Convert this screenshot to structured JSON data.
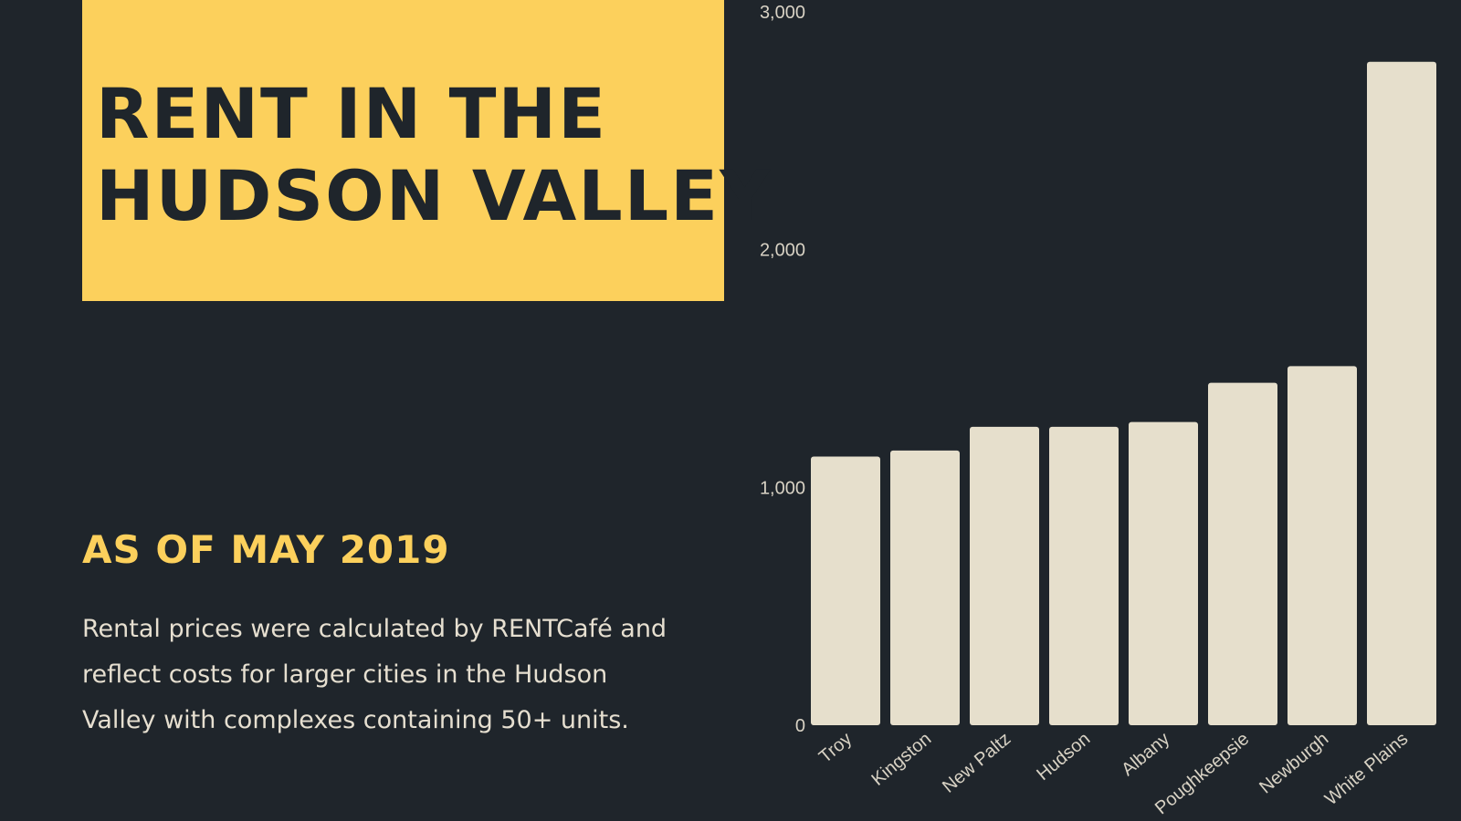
{
  "header": {
    "title_line1": "RENT IN THE",
    "title_line2": "HUDSON VALLEY"
  },
  "subtitle": "AS OF MAY 2019",
  "description": "Rental prices were calculated by RENTCafé and reflect costs for larger cities in the Hudson Valley with complexes containing 50+ units.",
  "colors": {
    "background": "#1f252b",
    "accent": "#fcd05c",
    "bar": "#e6dfcc",
    "text": "#e6dfd0"
  },
  "chart_data": {
    "type": "bar",
    "title": "",
    "xlabel": "",
    "ylabel": "",
    "categories": [
      "Troy",
      "Kingston",
      "New Paltz",
      "Hudson",
      "Albany",
      "Poughkeepsie",
      "Newburgh",
      "White Plains"
    ],
    "values": [
      1130,
      1155,
      1255,
      1255,
      1275,
      1440,
      1510,
      2790
    ],
    "ylim": [
      0,
      3000
    ],
    "yticks": [
      0,
      1000,
      2000,
      3000
    ],
    "ytick_labels": [
      "0",
      "1,000",
      "2,000",
      "3,000"
    ],
    "grid": false,
    "legend": "none"
  }
}
